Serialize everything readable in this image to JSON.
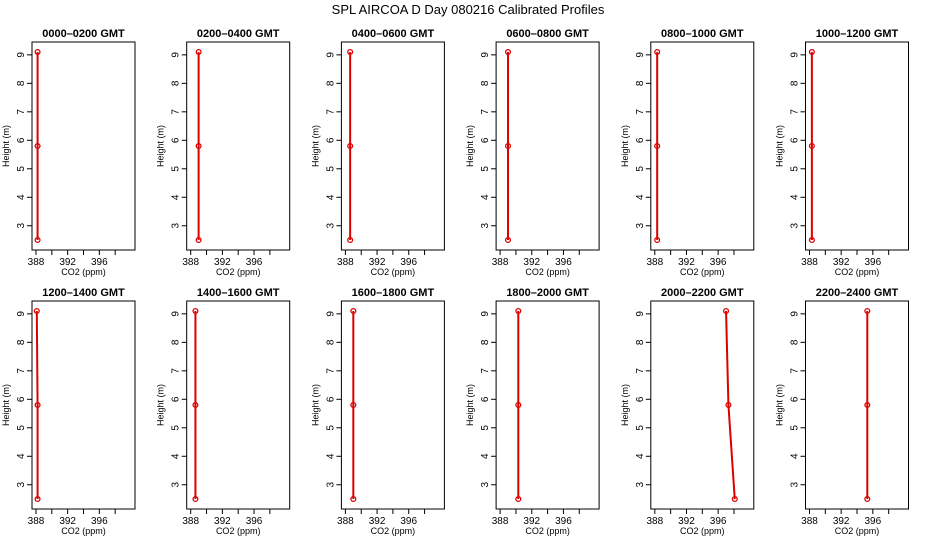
{
  "figure_title": "SPL AIRCOA D  Day 080216  Calibrated Profiles",
  "colors": {
    "series": "#dd0000",
    "axis": "#000000"
  },
  "chart_data": [
    {
      "type": "line",
      "title": "0000–0200 GMT",
      "xlabel": "CO2 (ppm)",
      "ylabel": "Height (m)",
      "xlim": [
        388,
        400
      ],
      "ylim": [
        2.5,
        9.1
      ],
      "xticks": [
        388,
        392,
        396
      ],
      "yticks": [
        3,
        4,
        5,
        6,
        7,
        8,
        9
      ],
      "x": [
        388.2,
        388.2,
        388.2
      ],
      "y": [
        2.5,
        5.8,
        9.1
      ]
    },
    {
      "type": "line",
      "title": "0200–0400 GMT",
      "xlabel": "CO2 (ppm)",
      "ylabel": "Height (m)",
      "xlim": [
        388,
        400
      ],
      "ylim": [
        2.5,
        9.1
      ],
      "xticks": [
        388,
        392,
        396
      ],
      "yticks": [
        3,
        4,
        5,
        6,
        7,
        8,
        9
      ],
      "x": [
        389.0,
        389.0,
        389.0
      ],
      "y": [
        2.5,
        5.8,
        9.1
      ]
    },
    {
      "type": "line",
      "title": "0400–0600 GMT",
      "xlabel": "CO2 (ppm)",
      "ylabel": "Height (m)",
      "xlim": [
        388,
        400
      ],
      "ylim": [
        2.5,
        9.1
      ],
      "xticks": [
        388,
        392,
        396
      ],
      "yticks": [
        3,
        4,
        5,
        6,
        7,
        8,
        9
      ],
      "x": [
        388.6,
        388.6,
        388.6
      ],
      "y": [
        2.5,
        5.8,
        9.1
      ]
    },
    {
      "type": "line",
      "title": "0600–0800 GMT",
      "xlabel": "CO2 (ppm)",
      "ylabel": "Height (m)",
      "xlim": [
        388,
        400
      ],
      "ylim": [
        2.5,
        9.1
      ],
      "xticks": [
        388,
        392,
        396
      ],
      "yticks": [
        3,
        4,
        5,
        6,
        7,
        8,
        9
      ],
      "x": [
        389.0,
        389.0,
        389.0
      ],
      "y": [
        2.5,
        5.8,
        9.1
      ]
    },
    {
      "type": "line",
      "title": "0800–1000 GMT",
      "xlabel": "CO2 (ppm)",
      "ylabel": "Height (m)",
      "xlim": [
        388,
        400
      ],
      "ylim": [
        2.5,
        9.1
      ],
      "xticks": [
        388,
        392,
        396
      ],
      "yticks": [
        3,
        4,
        5,
        6,
        7,
        8,
        9
      ],
      "x": [
        388.3,
        388.3,
        388.3
      ],
      "y": [
        2.5,
        5.8,
        9.1
      ]
    },
    {
      "type": "line",
      "title": "1000–1200 GMT",
      "xlabel": "CO2 (ppm)",
      "ylabel": "Height (m)",
      "xlim": [
        388,
        400
      ],
      "ylim": [
        2.5,
        9.1
      ],
      "xticks": [
        388,
        392,
        396
      ],
      "yticks": [
        3,
        4,
        5,
        6,
        7,
        8,
        9
      ],
      "x": [
        388.3,
        388.3,
        388.3
      ],
      "y": [
        2.5,
        5.8,
        9.1
      ]
    },
    {
      "type": "line",
      "title": "1200–1400 GMT",
      "xlabel": "CO2 (ppm)",
      "ylabel": "Height (m)",
      "xlim": [
        388,
        400
      ],
      "ylim": [
        2.5,
        9.1
      ],
      "xticks": [
        388,
        392,
        396
      ],
      "yticks": [
        3,
        4,
        5,
        6,
        7,
        8,
        9
      ],
      "x": [
        388.2,
        388.2,
        388.1
      ],
      "y": [
        2.5,
        5.8,
        9.1
      ]
    },
    {
      "type": "line",
      "title": "1400–1600 GMT",
      "xlabel": "CO2 (ppm)",
      "ylabel": "Height (m)",
      "xlim": [
        388,
        400
      ],
      "ylim": [
        2.5,
        9.1
      ],
      "xticks": [
        388,
        392,
        396
      ],
      "yticks": [
        3,
        4,
        5,
        6,
        7,
        8,
        9
      ],
      "x": [
        388.6,
        388.6,
        388.6
      ],
      "y": [
        2.5,
        5.8,
        9.1
      ]
    },
    {
      "type": "line",
      "title": "1600–1800 GMT",
      "xlabel": "CO2 (ppm)",
      "ylabel": "Height (m)",
      "xlim": [
        388,
        400
      ],
      "ylim": [
        2.5,
        9.1
      ],
      "xticks": [
        388,
        392,
        396
      ],
      "yticks": [
        3,
        4,
        5,
        6,
        7,
        8,
        9
      ],
      "x": [
        389.0,
        389.0,
        389.0
      ],
      "y": [
        2.5,
        5.8,
        9.1
      ]
    },
    {
      "type": "line",
      "title": "1800–2000 GMT",
      "xlabel": "CO2 (ppm)",
      "ylabel": "Height (m)",
      "xlim": [
        388,
        400
      ],
      "ylim": [
        2.5,
        9.1
      ],
      "xticks": [
        388,
        392,
        396
      ],
      "yticks": [
        3,
        4,
        5,
        6,
        7,
        8,
        9
      ],
      "x": [
        390.3,
        390.3,
        390.3
      ],
      "y": [
        2.5,
        5.8,
        9.1
      ]
    },
    {
      "type": "line",
      "title": "2000–2200 GMT",
      "xlabel": "CO2 (ppm)",
      "ylabel": "Height (m)",
      "xlim": [
        388,
        400
      ],
      "ylim": [
        2.5,
        9.1
      ],
      "xticks": [
        388,
        392,
        396
      ],
      "yticks": [
        3,
        4,
        5,
        6,
        7,
        8,
        9
      ],
      "x": [
        398.1,
        397.3,
        397.0
      ],
      "y": [
        2.5,
        5.8,
        9.1
      ]
    },
    {
      "type": "line",
      "title": "2200–2400 GMT",
      "xlabel": "CO2 (ppm)",
      "ylabel": "Height (m)",
      "xlim": [
        388,
        400
      ],
      "ylim": [
        2.5,
        9.1
      ],
      "xticks": [
        388,
        392,
        396
      ],
      "yticks": [
        3,
        4,
        5,
        6,
        7,
        8,
        9
      ],
      "x": [
        395.3,
        395.3,
        395.3
      ],
      "y": [
        2.5,
        5.8,
        9.1
      ]
    }
  ]
}
